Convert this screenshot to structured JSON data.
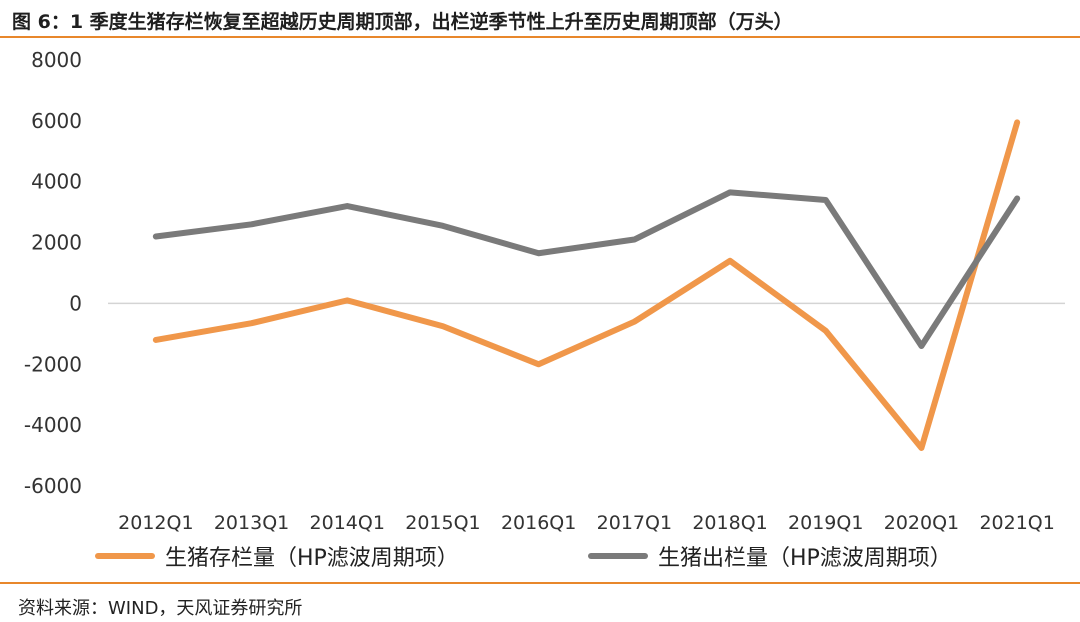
{
  "header": {
    "title": "图 6：1 季度生猪存栏恢复至超越历史周期顶部，出栏逆季节性上升至历史周期顶部（万头）"
  },
  "footer": {
    "source": "资料来源：WIND，天风证券研究所"
  },
  "colors": {
    "accent": "#e8872b",
    "series1": "#f0974a",
    "series2": "#7a7a7a",
    "zero_line": "#d4d4d4"
  },
  "chart_data": {
    "type": "line",
    "title": "",
    "xlabel": "",
    "ylabel": "",
    "categories": [
      "2012Q1",
      "2013Q1",
      "2014Q1",
      "2015Q1",
      "2016Q1",
      "2017Q1",
      "2018Q1",
      "2019Q1",
      "2020Q1",
      "2021Q1"
    ],
    "y_ticks": [
      "8000",
      "6000",
      "4000",
      "2000",
      "0",
      "-2000",
      "-4000",
      "-6000"
    ],
    "ylim": [
      -6000,
      8000
    ],
    "grid": false,
    "legend_position": "bottom",
    "series": [
      {
        "name": "生猪存栏量（HP滤波周期项）",
        "color": "#f0974a",
        "values": [
          -1200,
          -650,
          100,
          -750,
          -2000,
          -600,
          1400,
          -900,
          -4750,
          5950
        ]
      },
      {
        "name": "生猪出栏量（HP滤波周期项）",
        "color": "#7a7a7a",
        "values": [
          2200,
          2600,
          3200,
          2550,
          1650,
          2100,
          3650,
          3400,
          -1400,
          3450
        ]
      }
    ]
  }
}
